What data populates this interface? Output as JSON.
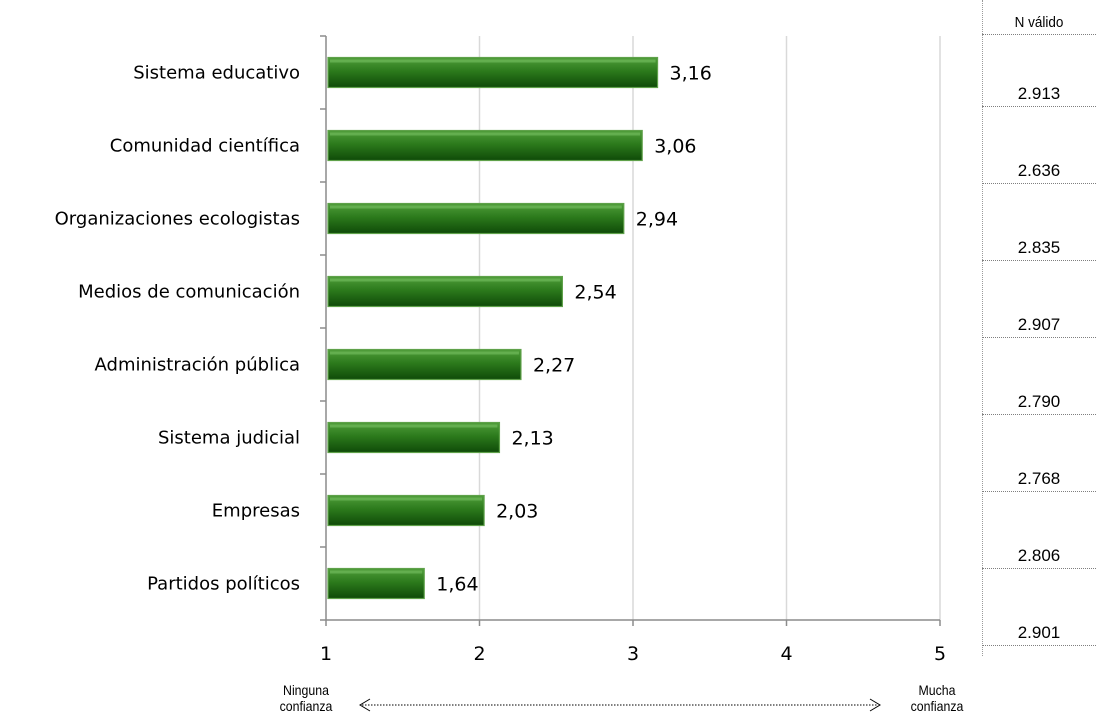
{
  "chart_data": {
    "type": "bar",
    "orientation": "horizontal",
    "categories": [
      "Sistema educativo",
      "Comunidad científica",
      "Organizaciones ecologistas",
      "Medios de comunicación",
      "Administración pública",
      "Sistema judicial",
      "Empresas",
      "Partidos políticos"
    ],
    "values": [
      3.16,
      3.06,
      2.94,
      2.54,
      2.27,
      2.13,
      2.03,
      1.64
    ],
    "value_labels": [
      "3,16",
      "3,06",
      "2,94",
      "2,54",
      "2,27",
      "2,13",
      "2,03",
      "1,64"
    ],
    "xlim": [
      1,
      5
    ],
    "x_ticks": [
      "1",
      "2",
      "3",
      "4",
      "5"
    ],
    "grid": true,
    "bar_color": "#2e7d1f",
    "low_label": "Ninguna confianza",
    "high_label": "Mucha confianza"
  },
  "n_valido": {
    "header": "N válido",
    "values": [
      "2.913",
      "2.636",
      "2.835",
      "2.907",
      "2.790",
      "2.768",
      "2.806",
      "2.901"
    ]
  }
}
